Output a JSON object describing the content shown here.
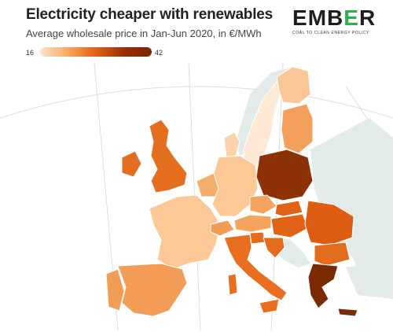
{
  "header": {
    "title": "Electricity cheaper with renewables",
    "subtitle": "Average wholesale price in Jan-Jun 2020, in €/MWh"
  },
  "logo": {
    "word": "EMBER",
    "tagline": "COAL TO CLEAN ENERGY POLICY",
    "accent_color": "#2fae4e"
  },
  "legend": {
    "min": "16",
    "max": "42",
    "color_low": "#fde6cf",
    "color_high": "#7a2500"
  },
  "map": {
    "non_eu_color": "#e3ebe8",
    "regions": [
      {
        "name": "Norway",
        "level": "no data"
      },
      {
        "name": "Sweden",
        "level": "very low"
      },
      {
        "name": "Finland",
        "level": "low"
      },
      {
        "name": "Baltics",
        "level": "medium"
      },
      {
        "name": "Denmark",
        "level": "low"
      },
      {
        "name": "United Kingdom",
        "level": "high"
      },
      {
        "name": "Ireland",
        "level": "high"
      },
      {
        "name": "France",
        "level": "low"
      },
      {
        "name": "Benelux",
        "level": "medium-low"
      },
      {
        "name": "Germany",
        "level": "low"
      },
      {
        "name": "Poland",
        "level": "very high"
      },
      {
        "name": "Czechia",
        "level": "medium-low"
      },
      {
        "name": "Austria",
        "level": "medium-low"
      },
      {
        "name": "Switzerland",
        "level": "medium"
      },
      {
        "name": "Slovakia",
        "level": "high"
      },
      {
        "name": "Hungary",
        "level": "high"
      },
      {
        "name": "Romania",
        "level": "high"
      },
      {
        "name": "Bulgaria",
        "level": "high"
      },
      {
        "name": "Slovenia",
        "level": "high"
      },
      {
        "name": "Croatia",
        "level": "high"
      },
      {
        "name": "Italy",
        "level": "high"
      },
      {
        "name": "Spain",
        "level": "medium"
      },
      {
        "name": "Portugal",
        "level": "medium"
      },
      {
        "name": "Greece",
        "level": "very high"
      },
      {
        "name": "Sardinia",
        "level": "high"
      },
      {
        "name": "Sicily",
        "level": "high"
      }
    ]
  }
}
